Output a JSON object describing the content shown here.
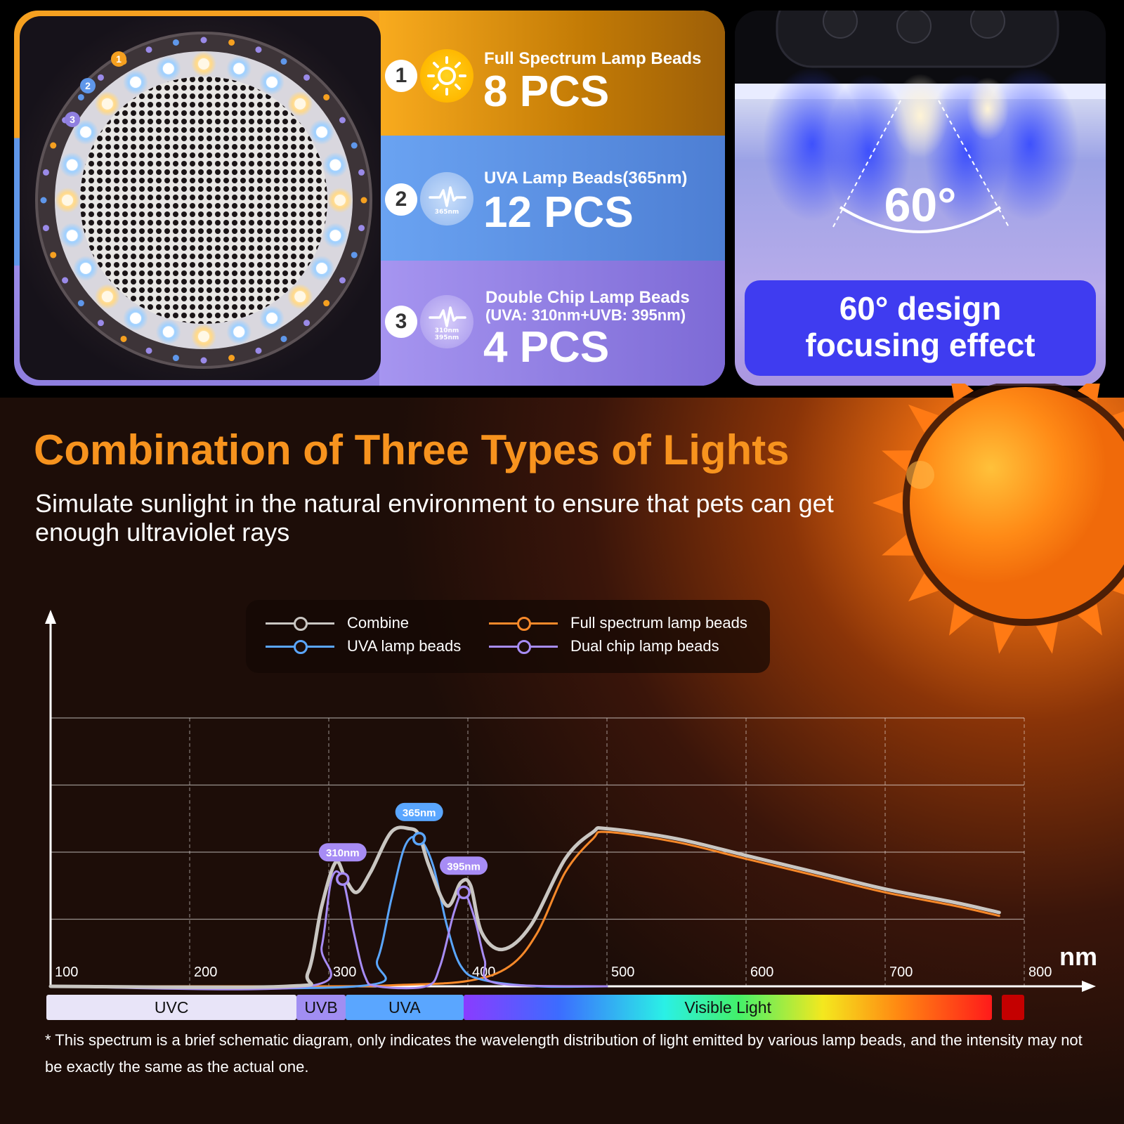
{
  "top_left": {
    "badges_ring": [
      "1",
      "2",
      "3"
    ],
    "rows": [
      {
        "num": "1",
        "icon": "sun-icon",
        "icon_sub": "",
        "title": "Full Spectrum Lamp Beads",
        "title2": "",
        "count": "8 PCS"
      },
      {
        "num": "2",
        "icon": "waveform-icon",
        "icon_sub": "365nm",
        "title": "UVA Lamp Beads(365nm)",
        "title2": "",
        "count": "12 PCS"
      },
      {
        "num": "3",
        "icon": "waveform-icon",
        "icon_sub": "310nm 395nm",
        "title": "Double Chip Lamp Beads",
        "title2": "(UVA: 310nm+UVB: 395nm)",
        "count": "4 PCS"
      }
    ],
    "colors": {
      "orange": "#f5a020",
      "blue": "#5f97ea",
      "purple": "#9a8ae8"
    }
  },
  "top_right": {
    "angle": "60°",
    "design_line1": "60° design",
    "design_line2": "focusing effect"
  },
  "heading": {
    "title": "Combination of Three Types of Lights",
    "subtitle": "Simulate sunlight in the natural environment to ensure that pets can get enough ultraviolet rays"
  },
  "legend": [
    {
      "label": "Combine",
      "color": "#c9c6c2"
    },
    {
      "label": "Full spectrum lamp beads",
      "color": "#f7892a"
    },
    {
      "label": "UVA lamp beads",
      "color": "#5aa6ff"
    },
    {
      "label": "Dual chip lamp beads",
      "color": "#a78cf5"
    }
  ],
  "chart_data": {
    "type": "line",
    "xlabel": "nm",
    "ylabel": "",
    "xlim": [
      100,
      800
    ],
    "ylim": [
      0,
      4
    ],
    "grid": true,
    "x_ticks": [
      "100",
      "200",
      "300",
      "400",
      "500",
      "600",
      "700",
      "800"
    ],
    "series": [
      {
        "name": "Combine",
        "color": "#c9c6c2",
        "x": [
          100,
          270,
          285,
          295,
          305,
          312,
          320,
          330,
          345,
          358,
          365,
          372,
          385,
          395,
          402,
          410,
          425,
          445,
          470,
          490,
          500,
          550,
          600,
          650,
          700,
          750,
          782
        ],
        "y": [
          0.0,
          0.0,
          0.2,
          1.2,
          1.85,
          1.6,
          1.4,
          1.7,
          2.3,
          2.35,
          2.25,
          1.8,
          1.2,
          1.55,
          1.5,
          0.8,
          0.55,
          0.9,
          1.9,
          2.3,
          2.35,
          2.2,
          1.95,
          1.7,
          1.45,
          1.25,
          1.1
        ]
      },
      {
        "name": "Full spectrum lamp beads",
        "color": "#f7892a",
        "x": [
          100,
          300,
          350,
          400,
          430,
          450,
          470,
          490,
          500,
          550,
          600,
          650,
          700,
          750,
          782
        ],
        "y": [
          0.0,
          0.0,
          0.02,
          0.08,
          0.3,
          0.8,
          1.7,
          2.2,
          2.3,
          2.15,
          1.9,
          1.65,
          1.4,
          1.2,
          1.05
        ]
      },
      {
        "name": "UVA lamp beads",
        "color": "#5aa6ff",
        "x": [
          100,
          320,
          335,
          345,
          355,
          365,
          375,
          385,
          395,
          410,
          450,
          500
        ],
        "y": [
          0.0,
          0.0,
          0.4,
          1.3,
          2.1,
          2.2,
          1.8,
          0.9,
          0.3,
          0.1,
          0.0,
          0.0
        ]
      },
      {
        "name": "Dual chip lamp beads",
        "color": "#a78cf5",
        "x": [
          100,
          285,
          295,
          302,
          310,
          318,
          326,
          335,
          370,
          380,
          390,
          397,
          405,
          412,
          420,
          500
        ],
        "y": [
          0.0,
          0.0,
          0.6,
          1.6,
          1.6,
          0.8,
          0.15,
          0.0,
          0.0,
          0.3,
          1.1,
          1.4,
          1.0,
          0.4,
          0.05,
          0.0
        ]
      }
    ],
    "annotations": [
      {
        "label": "310nm",
        "x": 310,
        "y": 1.6,
        "color": "#a78cf5"
      },
      {
        "label": "365nm",
        "x": 365,
        "y": 2.2,
        "color": "#5aa6ff"
      },
      {
        "label": "395nm",
        "x": 397,
        "y": 1.4,
        "color": "#a78cf5"
      }
    ],
    "bands": [
      {
        "label": "UVC",
        "from": 100,
        "to": 280,
        "color": "#e8e4f8"
      },
      {
        "label": "UVB",
        "from": 280,
        "to": 315,
        "color": "#a18ef2"
      },
      {
        "label": "UVA",
        "from": 315,
        "to": 400,
        "color": "#5aa6ff"
      },
      {
        "label": "Visible Light",
        "from": 400,
        "to": 780,
        "color": "gradient"
      }
    ]
  },
  "footnote": "* This spectrum is a brief schematic diagram, only indicates the wavelength distribution of light emitted by various lamp beads, and the intensity may not be exactly the same as the actual one."
}
